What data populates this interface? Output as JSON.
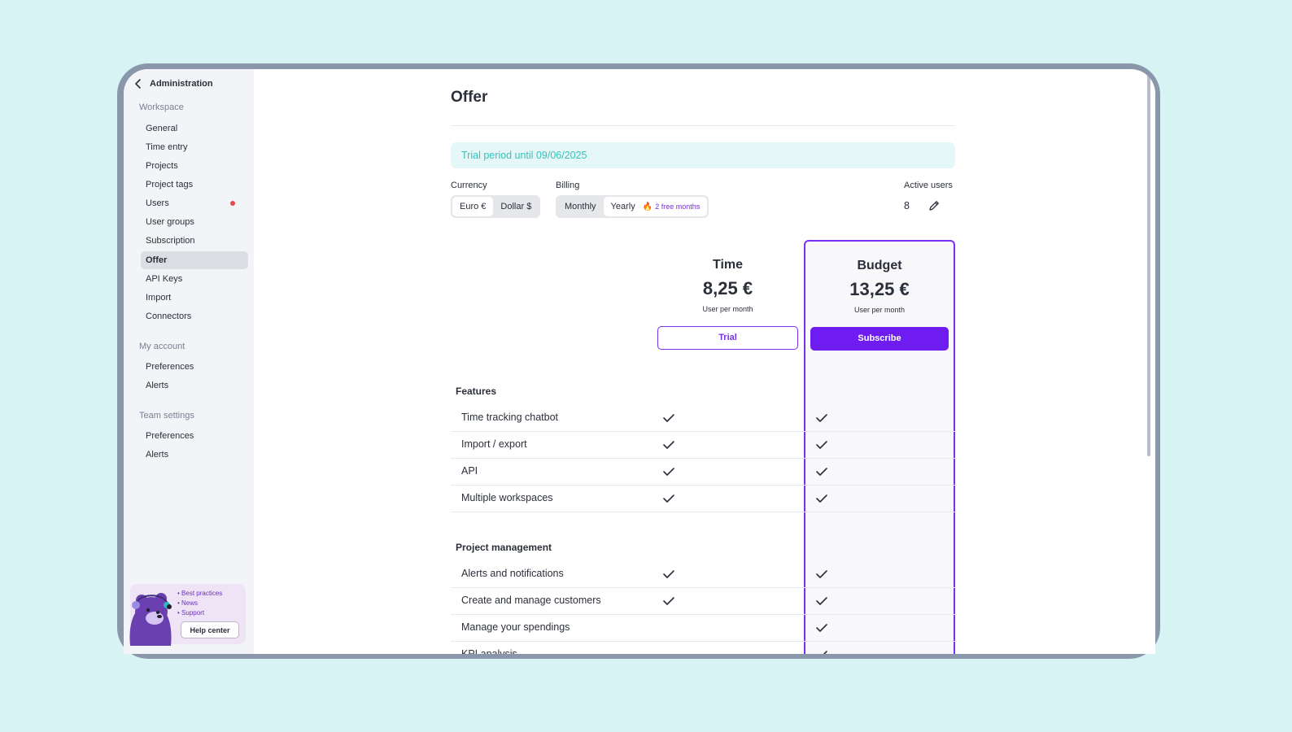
{
  "sidebar": {
    "back_label": "Administration",
    "sections": [
      {
        "title": "Workspace",
        "items": [
          "General",
          "Time entry",
          "Projects",
          "Project tags",
          "Users",
          "User groups",
          "Subscription",
          "Offer",
          "API Keys",
          "Import",
          "Connectors"
        ]
      },
      {
        "title": "My account",
        "items": [
          "Preferences",
          "Alerts"
        ]
      },
      {
        "title": "Team settings",
        "items": [
          "Preferences",
          "Alerts"
        ]
      }
    ],
    "active_item": "Offer",
    "notification_item": "Users",
    "help": {
      "links": [
        "Best practices",
        "News",
        "Support"
      ],
      "button": "Help center"
    }
  },
  "offer": {
    "title": "Offer",
    "trial_banner": "Trial period until 09/06/2025",
    "currency": {
      "label": "Currency",
      "options": [
        "Euro €",
        "Dollar $"
      ],
      "selected": "Euro €"
    },
    "billing": {
      "label": "Billing",
      "options": [
        "Monthly",
        "Yearly"
      ],
      "selected": "Yearly",
      "badge_icon": "fire-icon",
      "badge": "2 free months"
    },
    "active_users": {
      "label": "Active users",
      "value": "8"
    },
    "plans": [
      {
        "name": "Time",
        "price": "8,25 €",
        "period": "User per month",
        "button": "Trial"
      },
      {
        "name": "Budget",
        "price": "13,25 €",
        "period": "User per month",
        "button": "Subscribe",
        "highlighted": true
      }
    ],
    "groups": [
      {
        "title": "Features",
        "rows": [
          {
            "name": "Time tracking chatbot",
            "time": true,
            "budget": true
          },
          {
            "name": "Import / export",
            "time": true,
            "budget": true
          },
          {
            "name": "API",
            "time": true,
            "budget": true
          },
          {
            "name": "Multiple workspaces",
            "time": true,
            "budget": true
          }
        ]
      },
      {
        "title": "Project management",
        "rows": [
          {
            "name": "Alerts and notifications",
            "time": true,
            "budget": true
          },
          {
            "name": "Create and manage customers",
            "time": true,
            "budget": true
          },
          {
            "name": "Manage your spendings",
            "time": false,
            "budget": true
          },
          {
            "name": "KPI analysis",
            "time": false,
            "budget": true
          }
        ]
      }
    ]
  },
  "colors": {
    "accent": "#6f1cf0",
    "teal": "#36c2bf",
    "page_bg": "#d8f3f4",
    "frame": "#8a97ab"
  }
}
